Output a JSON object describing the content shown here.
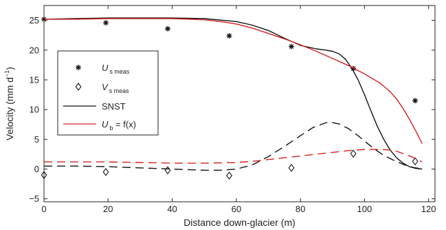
{
  "chart_data": {
    "type": "line",
    "xlabel": "Distance down-glacier (m)",
    "ylabel_main": "Velocity (mm d",
    "ylabel_sup": "−1",
    "ylabel_close": ")",
    "xlim": [
      0,
      122
    ],
    "ylim": [
      -5.5,
      27.5
    ],
    "xticks": [
      0,
      20,
      40,
      60,
      80,
      100,
      120
    ],
    "yticks": [
      -5,
      0,
      5,
      10,
      15,
      20,
      25
    ],
    "colors": {
      "black": "#111111",
      "red": "#d42020"
    },
    "legend": {
      "placement": "center-left",
      "entries": [
        {
          "id": "us",
          "main": "U",
          "sub": "s meas",
          "marker": "asterisk"
        },
        {
          "id": "vs",
          "main": "V",
          "sub": "s meas",
          "marker": "diamond"
        },
        {
          "id": "snst",
          "main": "SNST",
          "sub": "",
          "line": "black-solid"
        },
        {
          "id": "ub",
          "main": "U",
          "sub": "b",
          "suffix": " = f(x)",
          "line": "red-solid"
        }
      ]
    },
    "series": [
      {
        "name": "U s meas",
        "style": "asterisk",
        "color": "#111111",
        "x": [
          0,
          19.3,
          38.6,
          57.8,
          77.2,
          96.5,
          115.8
        ],
        "y": [
          25.2,
          24.6,
          23.6,
          22.4,
          20.6,
          16.9,
          11.5
        ]
      },
      {
        "name": "V s meas",
        "style": "diamond",
        "color": "#111111",
        "x": [
          0,
          19.3,
          38.6,
          57.8,
          77.2,
          96.5,
          115.8
        ],
        "y": [
          -1.0,
          -0.5,
          -0.2,
          -1.1,
          0.2,
          2.6,
          1.3
        ]
      },
      {
        "name": "SNST",
        "style": "solid",
        "color": "#111111",
        "x": [
          0,
          10,
          20,
          30,
          40,
          50,
          60,
          65,
          70,
          75,
          80,
          85,
          88,
          90,
          92,
          94,
          96,
          98,
          100,
          102,
          104,
          106,
          108,
          110,
          112,
          114,
          116,
          118
        ],
        "y": [
          25.2,
          25.3,
          25.4,
          25.4,
          25.4,
          25.3,
          24.8,
          24.2,
          23.3,
          22.0,
          20.8,
          20.2,
          20.0,
          19.8,
          19.4,
          18.5,
          17.0,
          15.0,
          12.5,
          9.8,
          7.2,
          5.0,
          3.2,
          1.9,
          1.0,
          0.4,
          0.1,
          0.0
        ]
      },
      {
        "name": "Ub = f(x)",
        "style": "solid",
        "color": "#d42020",
        "x": [
          0,
          10,
          20,
          30,
          40,
          50,
          55,
          60,
          65,
          70,
          75,
          80,
          85,
          90,
          95,
          100,
          105,
          108,
          110,
          112,
          114,
          116,
          118
        ],
        "y": [
          25.2,
          25.2,
          25.3,
          25.3,
          25.3,
          25.1,
          24.8,
          24.4,
          23.7,
          22.8,
          21.9,
          20.9,
          19.8,
          18.6,
          17.4,
          16.0,
          14.4,
          13.0,
          11.8,
          10.2,
          8.4,
          6.4,
          4.3
        ]
      },
      {
        "name": "SNST (V)",
        "style": "dashed",
        "color": "#111111",
        "x": [
          0,
          10,
          20,
          30,
          40,
          50,
          55,
          60,
          65,
          70,
          75,
          80,
          84,
          88,
          90,
          92,
          95,
          98,
          100,
          103,
          106,
          109,
          112,
          115,
          118
        ],
        "y": [
          0.5,
          0.5,
          0.4,
          0.2,
          0.0,
          -0.2,
          -0.2,
          0.0,
          0.7,
          2.1,
          3.8,
          5.6,
          7.0,
          7.8,
          7.8,
          7.6,
          6.8,
          5.6,
          4.7,
          3.4,
          2.3,
          1.5,
          0.8,
          0.3,
          0.0
        ]
      },
      {
        "name": "Vb = f(x)",
        "style": "dashed",
        "color": "#d42020",
        "x": [
          0,
          10,
          20,
          30,
          40,
          50,
          60,
          65,
          70,
          75,
          80,
          85,
          90,
          95,
          100,
          105,
          108,
          110,
          112,
          115,
          118
        ],
        "y": [
          1.2,
          1.2,
          1.2,
          1.1,
          1.0,
          1.0,
          1.1,
          1.3,
          1.6,
          1.9,
          2.2,
          2.5,
          2.8,
          3.1,
          3.3,
          3.3,
          3.2,
          3.0,
          2.6,
          2.0,
          1.2
        ]
      }
    ]
  }
}
